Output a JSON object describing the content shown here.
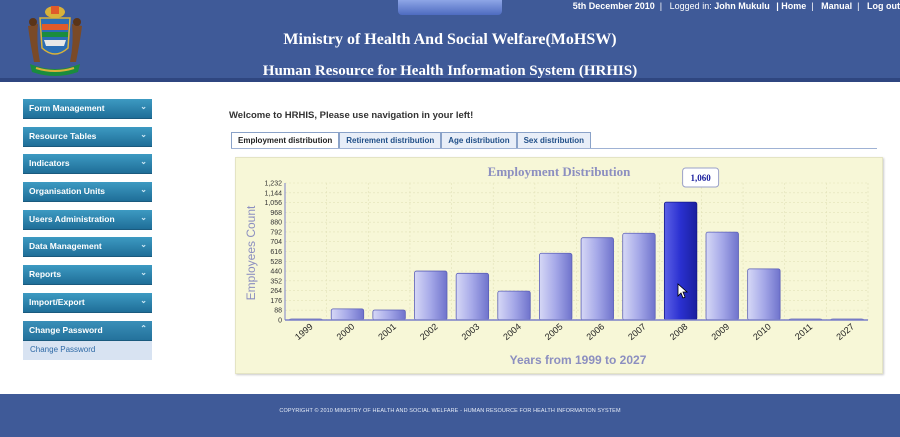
{
  "header": {
    "title": "Ministry of Health And Social Welfare(MoHSW)",
    "subtitle": "Human Resource for Health Information System (HRHIS)",
    "date": "5th December 2010",
    "logged_in_label": "Logged in:",
    "user": "John Mukulu",
    "links": [
      "| Home",
      "Manual",
      "Log out"
    ]
  },
  "sidebar": {
    "items": [
      {
        "label": "Form Management"
      },
      {
        "label": "Resource Tables"
      },
      {
        "label": "Indicators"
      },
      {
        "label": "Organisation Units"
      },
      {
        "label": "Users Administration"
      },
      {
        "label": "Data Management"
      },
      {
        "label": "Reports"
      },
      {
        "label": "Import/Export"
      },
      {
        "label": "Change Password"
      }
    ],
    "sub_item": "Change Password"
  },
  "main": {
    "welcome": "Welcome to HRHIS, Please use navigation in your left!",
    "tabs": [
      {
        "label": "Employment distribution"
      },
      {
        "label": "Retirement distribution"
      },
      {
        "label": "Age distribution"
      },
      {
        "label": "Sex distribution"
      }
    ]
  },
  "chart_data": {
    "type": "bar",
    "title": "Employment Distribution",
    "xlabel": "Years from 1999 to 2027",
    "ylabel": "Employees Count",
    "categories": [
      "1999",
      "2000",
      "2001",
      "2002",
      "2003",
      "2004",
      "2005",
      "2006",
      "2007",
      "2008",
      "2009",
      "2010",
      "2011",
      "2027"
    ],
    "values": [
      0,
      100,
      90,
      440,
      420,
      260,
      600,
      740,
      780,
      1060,
      790,
      460,
      8,
      6
    ],
    "yticks": [
      "1,232",
      "1,144",
      "1,056",
      "968",
      "880",
      "792",
      "704",
      "616",
      "528",
      "440",
      "352",
      "264",
      "176",
      "88",
      "0"
    ],
    "ylim": [
      0,
      1232
    ],
    "grid": true,
    "highlighted_category": "2008",
    "tooltip": "1,060",
    "colors": {
      "bar": "#8b8fd8",
      "bar_highlight": "#2a2fc6",
      "title": "#8c8fc0",
      "axis_label": "#8c8fc0"
    }
  },
  "footer": {
    "text": "COPYRIGHT © 2010 MINISTRY OF HEALTH AND SOCIAL WELFARE - HUMAN RESOURCE FOR HEALTH INFORMATION SYSTEM"
  }
}
